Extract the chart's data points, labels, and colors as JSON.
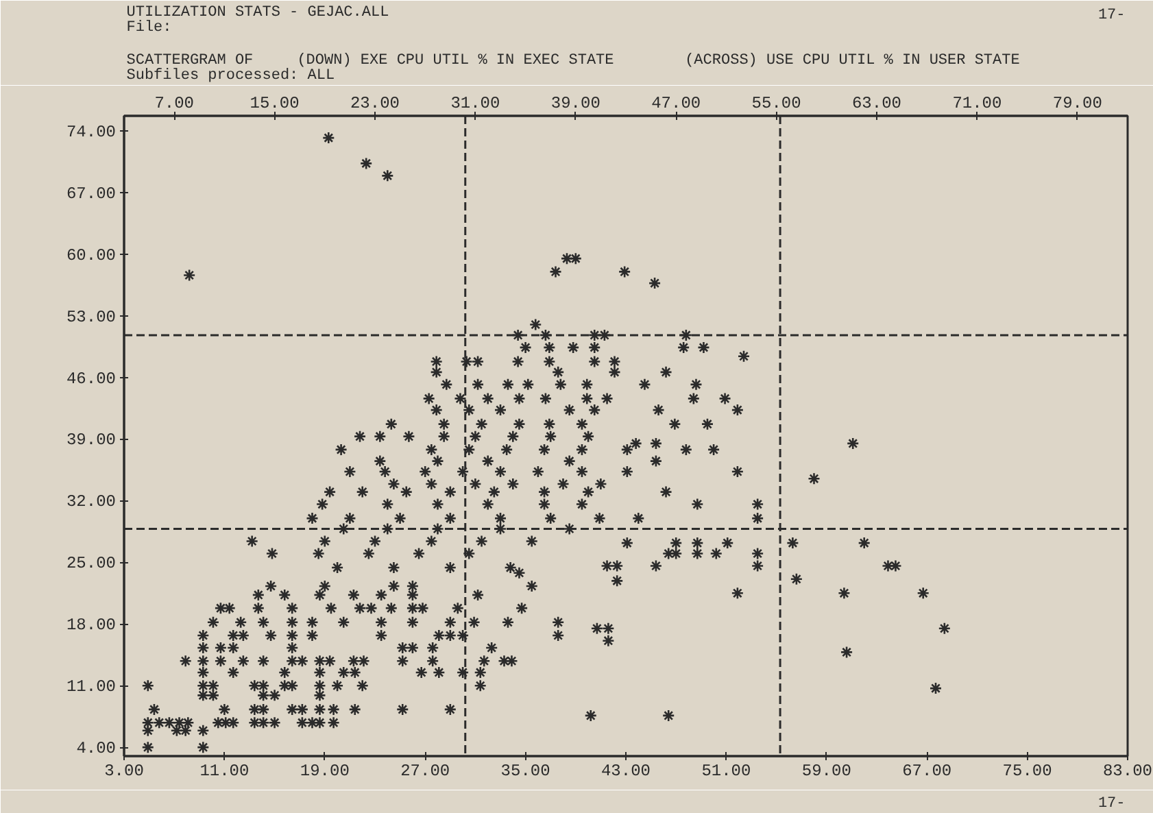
{
  "chart_data": {
    "type": "scatter",
    "title": "UTILIZATION STATS - GEJAC.ALL",
    "subtitle": "SCATTERGRAM OF",
    "ylabel": "(DOWN) EXE CPU UTIL % IN EXEC STATE",
    "xlabel": "(ACROSS) USE CPU UTIL % IN USER STATE",
    "annotations": [
      "File:",
      "Subfiles processed: ALL",
      "17-",
      "17-"
    ],
    "xlim": [
      3,
      83
    ],
    "ylim": [
      3,
      75.7
    ],
    "xticks": [
      {
        "value": 3,
        "label": "3.00"
      },
      {
        "value": 11,
        "label": "11.00"
      },
      {
        "value": 19,
        "label": "19.00"
      },
      {
        "value": 27,
        "label": "27.00"
      },
      {
        "value": 35,
        "label": "35.00"
      },
      {
        "value": 43,
        "label": "43.00"
      },
      {
        "value": 51,
        "label": "51.00"
      },
      {
        "value": 59,
        "label": "59.00"
      },
      {
        "value": 67,
        "label": "67.00"
      },
      {
        "value": 75,
        "label": "75.00"
      },
      {
        "value": 83,
        "label": "83.00"
      }
    ],
    "x2lim": [
      3,
      83
    ],
    "x2ticks": [
      {
        "value": 7,
        "label": "7.00"
      },
      {
        "value": 15,
        "label": "15.00"
      },
      {
        "value": 23,
        "label": "23.00"
      },
      {
        "value": 31,
        "label": "31.00"
      },
      {
        "value": 39,
        "label": "39.00"
      },
      {
        "value": 47,
        "label": "47.00"
      },
      {
        "value": 55,
        "label": "55.00"
      },
      {
        "value": 63,
        "label": "63.00"
      },
      {
        "value": 71,
        "label": "71.00"
      },
      {
        "value": 79,
        "label": "79.00"
      }
    ],
    "yticks": [
      {
        "value": 4,
        "label": "4.00"
      },
      {
        "value": 11,
        "label": "11.00"
      },
      {
        "value": 18,
        "label": "18.00"
      },
      {
        "value": 25,
        "label": "25.00"
      },
      {
        "value": 32,
        "label": "32.00"
      },
      {
        "value": 39,
        "label": "39.00"
      },
      {
        "value": 46,
        "label": "46.00"
      },
      {
        "value": 53,
        "label": "53.00"
      },
      {
        "value": 60,
        "label": "60.00"
      },
      {
        "value": 67,
        "label": "67.00"
      },
      {
        "value": 74,
        "label": "74.00"
      }
    ],
    "marker": "cross",
    "ref_lines": [
      {
        "axis": "y",
        "value": 50.8,
        "color": "#2b2b2b",
        "line_style": "dashed"
      },
      {
        "axis": "y",
        "value": 28.8,
        "color": "#2b2b2b",
        "line_style": "dashed"
      },
      {
        "axis": "x",
        "value": 30.2,
        "color": "#2b2b2b",
        "line_style": "dashed"
      },
      {
        "axis": "x",
        "value": 55.3,
        "color": "#2b2b2b",
        "line_style": "dashed"
      }
    ],
    "series": [
      {
        "color": "#2b2b2b",
        "x": [
          19.3,
          22.3,
          24.0,
          8.2,
          37.4,
          38.3,
          39.0,
          42.9,
          45.3,
          35.8,
          34.4,
          36.6,
          40.5,
          41.3,
          47.8,
          35.0,
          36.9,
          38.8,
          40.5,
          47.6,
          49.2,
          27.9,
          30.3,
          31.2,
          34.4,
          36.9,
          40.5,
          42.1,
          52.4,
          27.9,
          37.6,
          42.1,
          46.2,
          28.7,
          31.2,
          33.6,
          35.2,
          37.8,
          39.9,
          44.5,
          48.6,
          27.3,
          29.8,
          32.0,
          34.5,
          36.6,
          39.9,
          41.5,
          48.4,
          50.9,
          27.9,
          30.5,
          33.0,
          38.5,
          40.5,
          45.6,
          51.9,
          24.3,
          28.5,
          31.5,
          34.5,
          36.9,
          39.5,
          46.9,
          49.5,
          21.8,
          23.4,
          25.7,
          28.5,
          31.0,
          34.0,
          37.0,
          40.0,
          20.3,
          27.5,
          30.5,
          33.5,
          36.5,
          39.5,
          43.1,
          47.8,
          50.0,
          23.4,
          28.0,
          32.0,
          38.5,
          45.4,
          21.0,
          23.8,
          27.0,
          30.0,
          33.0,
          36.0,
          39.5,
          43.1,
          51.9,
          24.5,
          27.5,
          31.0,
          34.0,
          38.0,
          41.0,
          19.4,
          22.0,
          25.5,
          29.0,
          32.5,
          36.5,
          40.0,
          46.2,
          18.8,
          24.0,
          28.0,
          32.0,
          36.5,
          39.5,
          18.0,
          21.0,
          25.0,
          29.0,
          33.0,
          37.0,
          40.9,
          44.0,
          13.2,
          19.0,
          23.0,
          27.5,
          31.5,
          35.5,
          43.1,
          47.0,
          51.1,
          14.8,
          18.5,
          22.5,
          26.5,
          30.5,
          46.4,
          50.2,
          53.5,
          20.0,
          24.5,
          29.0,
          33.8,
          41.5,
          45.4,
          53.5,
          20.5,
          24.0,
          28.0,
          33.0,
          38.5,
          48.7,
          53.5,
          53.5,
          48.7,
          47.0,
          48.7,
          42.3,
          42.3,
          51.9,
          40.7,
          41.6,
          41.6,
          40.2,
          46.4,
          34.5,
          45.4,
          43.8,
          61.1,
          58.0,
          62.0,
          56.3,
          56.6,
          63.9,
          64.5,
          60.4,
          66.7,
          68.4,
          60.6,
          67.7,
          14.7,
          19.0,
          24.5,
          26.0,
          35.5,
          13.7,
          15.8,
          18.6,
          21.3,
          23.5,
          26.0,
          31.2,
          10.7,
          11.4,
          13.7,
          16.4,
          19.5,
          21.8,
          22.7,
          24.3,
          26.0,
          26.8,
          29.6,
          34.7,
          10.1,
          12.3,
          14.1,
          16.4,
          18.0,
          20.5,
          23.5,
          26.0,
          29.0,
          30.9,
          33.6,
          37.6,
          9.3,
          11.7,
          12.5,
          14.7,
          16.4,
          18.0,
          23.5,
          28.1,
          29.0,
          30.0,
          37.6,
          9.3,
          10.7,
          11.7,
          16.4,
          25.2,
          26.0,
          27.6,
          32.3,
          7.9,
          9.3,
          10.7,
          12.5,
          14.1,
          16.4,
          17.2,
          18.6,
          19.4,
          21.3,
          22.1,
          25.2,
          27.6,
          31.7,
          33.3,
          33.9,
          9.3,
          11.7,
          15.8,
          18.6,
          20.5,
          21.4,
          26.7,
          28.1,
          30.0,
          31.4,
          4.9,
          9.3,
          10.1,
          13.4,
          14.1,
          15.8,
          16.4,
          18.6,
          20.0,
          22.0,
          31.4,
          9.3,
          10.1,
          14.1,
          15.0,
          18.6,
          5.4,
          11.0,
          13.4,
          14.1,
          16.4,
          17.2,
          18.6,
          19.7,
          21.4,
          25.2,
          29.0,
          4.9,
          5.8,
          6.6,
          7.4,
          8.1,
          10.5,
          11.1,
          11.7,
          13.4,
          14.1,
          15.0,
          17.2,
          18.0,
          18.6,
          19.7,
          4.9,
          7.2,
          7.9,
          9.3,
          4.9,
          9.3
        ],
        "values": [
          73.2,
          70.3,
          68.9,
          57.6,
          58.0,
          59.5,
          59.5,
          58.0,
          56.7,
          52.0,
          50.8,
          50.8,
          50.8,
          50.8,
          50.8,
          49.4,
          49.4,
          49.4,
          49.4,
          49.4,
          49.4,
          47.8,
          47.8,
          47.8,
          47.8,
          47.8,
          47.8,
          47.8,
          48.4,
          46.6,
          46.6,
          46.6,
          46.6,
          45.2,
          45.2,
          45.2,
          45.2,
          45.2,
          45.2,
          45.2,
          45.2,
          43.6,
          43.6,
          43.6,
          43.6,
          43.6,
          43.6,
          43.6,
          43.6,
          43.6,
          42.3,
          42.3,
          42.3,
          42.3,
          42.3,
          42.3,
          42.3,
          40.7,
          40.7,
          40.7,
          40.7,
          40.7,
          40.7,
          40.7,
          40.7,
          39.3,
          39.3,
          39.3,
          39.3,
          39.3,
          39.3,
          39.3,
          39.3,
          37.8,
          37.8,
          37.8,
          37.8,
          37.8,
          37.8,
          37.8,
          37.8,
          37.8,
          36.5,
          36.5,
          36.5,
          36.5,
          36.5,
          35.3,
          35.3,
          35.3,
          35.3,
          35.3,
          35.3,
          35.3,
          35.3,
          35.3,
          33.9,
          33.9,
          33.9,
          33.9,
          33.9,
          33.9,
          33.0,
          33.0,
          33.0,
          33.0,
          33.0,
          33.0,
          33.0,
          33.0,
          31.6,
          31.6,
          31.6,
          31.6,
          31.6,
          31.6,
          30.0,
          30.0,
          30.0,
          30.0,
          30.0,
          30.0,
          30.0,
          30.0,
          27.4,
          27.4,
          27.4,
          27.4,
          27.4,
          27.4,
          27.2,
          27.2,
          27.2,
          26.0,
          26.0,
          26.0,
          26.0,
          26.0,
          26.0,
          26.0,
          26.0,
          24.4,
          24.4,
          24.4,
          24.4,
          24.6,
          24.6,
          24.6,
          28.8,
          28.8,
          28.8,
          28.8,
          28.8,
          31.6,
          31.6,
          30.0,
          27.2,
          26.0,
          26.0,
          24.6,
          22.9,
          21.5,
          17.5,
          17.5,
          16.1,
          7.6,
          7.6,
          23.8,
          38.5,
          38.5,
          38.5,
          34.5,
          27.2,
          27.2,
          23.1,
          24.6,
          24.6,
          21.5,
          21.5,
          17.5,
          14.8,
          10.7,
          22.3,
          22.3,
          22.3,
          22.3,
          22.3,
          21.3,
          21.3,
          21.3,
          21.3,
          21.3,
          21.3,
          21.3,
          19.8,
          19.8,
          19.8,
          19.8,
          19.8,
          19.8,
          19.8,
          19.8,
          19.8,
          19.8,
          19.8,
          19.8,
          18.2,
          18.2,
          18.2,
          18.2,
          18.2,
          18.2,
          18.2,
          18.2,
          18.2,
          18.2,
          18.2,
          18.2,
          16.7,
          16.7,
          16.7,
          16.7,
          16.7,
          16.7,
          16.7,
          16.7,
          16.7,
          16.7,
          16.7,
          15.3,
          15.3,
          15.3,
          15.3,
          15.3,
          15.3,
          15.3,
          15.3,
          13.8,
          13.8,
          13.8,
          13.8,
          13.8,
          13.8,
          13.8,
          13.8,
          13.8,
          13.8,
          13.8,
          13.8,
          13.8,
          13.8,
          13.8,
          13.8,
          12.5,
          12.5,
          12.5,
          12.5,
          12.5,
          12.5,
          12.5,
          12.5,
          12.5,
          12.5,
          11.0,
          11.0,
          11.0,
          11.0,
          11.0,
          11.0,
          11.0,
          11.0,
          11.0,
          11.0,
          11.0,
          9.9,
          9.9,
          9.9,
          9.9,
          9.9,
          8.3,
          8.3,
          8.3,
          8.3,
          8.3,
          8.3,
          8.3,
          8.3,
          8.3,
          8.3,
          8.3,
          6.8,
          6.8,
          6.8,
          6.8,
          6.8,
          6.8,
          6.8,
          6.8,
          6.8,
          6.8,
          6.8,
          6.8,
          6.8,
          6.8,
          6.8,
          5.9,
          5.9,
          5.9,
          5.9,
          4.0,
          4.0
        ]
      }
    ]
  }
}
